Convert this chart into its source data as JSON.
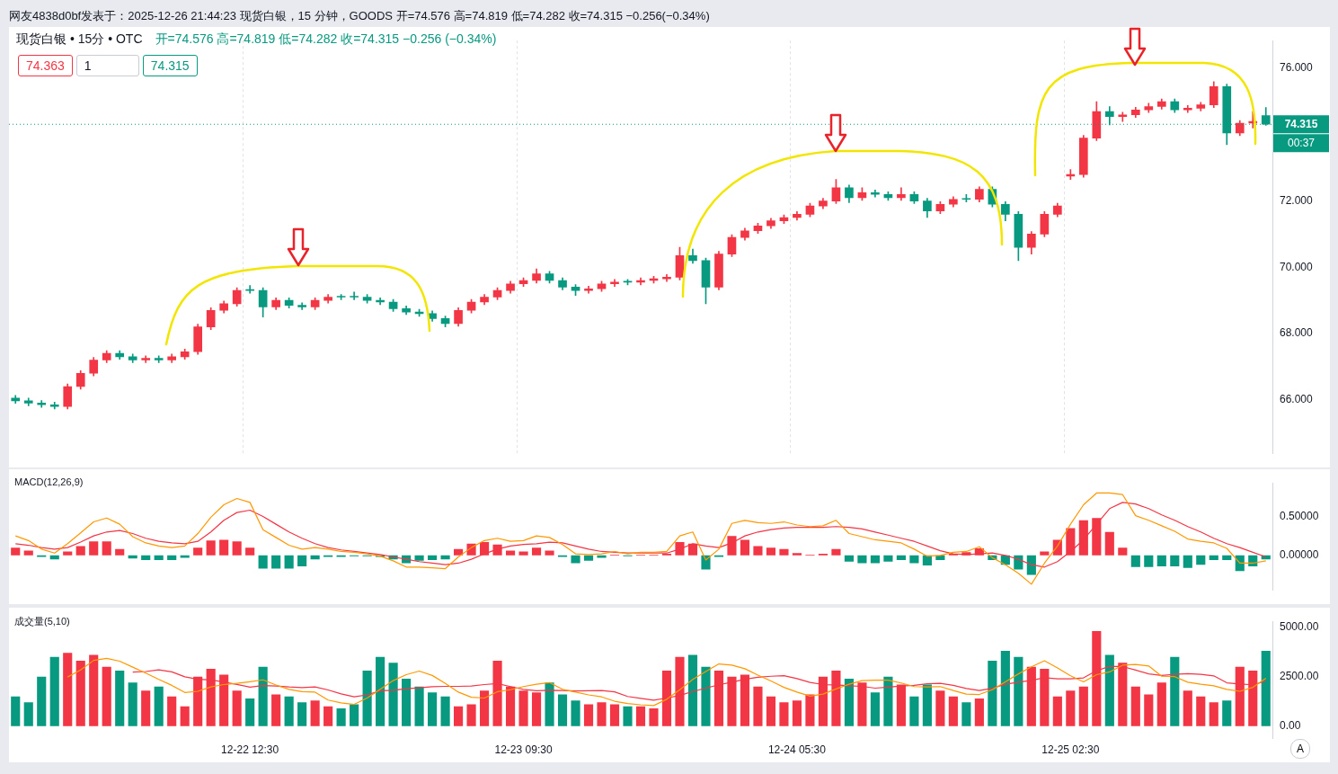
{
  "chart_data": [
    {
      "type": "candlestick",
      "title": "网友4838d0bf发表于：2025-12-26 21:44:23 现货白银，15 分钟，GOODS 开=74.576 高=74.819 低=74.282 收=74.315 −0.256(−0.34%)",
      "categories": [
        null,
        null,
        null,
        null,
        null,
        null,
        null,
        null,
        null,
        null,
        null,
        null,
        null,
        null,
        null,
        null,
        null,
        null,
        null,
        null,
        null,
        null,
        null,
        null,
        null,
        null,
        null,
        null,
        null,
        null,
        null,
        null,
        null,
        null,
        null,
        null,
        null,
        null,
        null,
        null,
        null,
        null,
        null,
        null,
        null,
        null,
        null,
        null,
        null,
        null,
        null,
        null,
        null,
        null,
        null,
        null,
        null,
        null,
        null,
        null,
        null,
        null,
        null,
        null,
        null,
        null,
        null,
        null,
        null,
        null,
        null,
        null,
        null,
        null,
        null,
        null,
        null,
        null,
        null,
        null,
        null,
        null,
        null,
        null,
        null,
        null,
        null,
        null,
        null,
        null,
        null,
        null,
        null,
        null,
        null,
        null,
        null
      ],
      "ohlc": [
        [
          66.05,
          66.13,
          65.89,
          65.97
        ],
        [
          65.97,
          66.05,
          65.82,
          65.9
        ],
        [
          65.9,
          65.98,
          65.77,
          65.85
        ],
        [
          65.85,
          65.93,
          65.72,
          65.8
        ],
        [
          65.8,
          66.48,
          65.72,
          66.4
        ],
        [
          66.4,
          66.88,
          66.32,
          66.8
        ],
        [
          66.8,
          67.28,
          66.72,
          67.2
        ],
        [
          67.2,
          67.48,
          67.12,
          67.4
        ],
        [
          67.4,
          67.48,
          67.22,
          67.3
        ],
        [
          67.3,
          67.38,
          67.12,
          67.2
        ],
        [
          67.2,
          67.33,
          67.12,
          67.25
        ],
        [
          67.25,
          67.33,
          67.12,
          67.2
        ],
        [
          67.2,
          67.38,
          67.12,
          67.3
        ],
        [
          67.3,
          67.53,
          67.22,
          67.45
        ],
        [
          67.45,
          68.28,
          67.37,
          68.2
        ],
        [
          68.2,
          68.78,
          68.12,
          68.7
        ],
        [
          68.7,
          68.98,
          68.62,
          68.9
        ],
        [
          68.9,
          69.38,
          68.82,
          69.3
        ],
        [
          69.3,
          69.45,
          69.22,
          69.3
        ],
        [
          69.3,
          69.38,
          68.5,
          68.8
        ],
        [
          68.8,
          69.08,
          68.72,
          69.0
        ],
        [
          69.0,
          69.08,
          68.77,
          68.85
        ],
        [
          68.85,
          68.93,
          68.72,
          68.8
        ],
        [
          68.8,
          69.08,
          68.72,
          69.0
        ],
        [
          69.0,
          69.18,
          68.92,
          69.1
        ],
        [
          69.1,
          69.18,
          69.02,
          69.1
        ],
        [
          69.1,
          69.25,
          69.02,
          69.1
        ],
        [
          69.1,
          69.18,
          68.92,
          69.0
        ],
        [
          69.0,
          69.08,
          68.87,
          68.95
        ],
        [
          68.95,
          69.03,
          68.67,
          68.75
        ],
        [
          68.75,
          68.83,
          68.57,
          68.65
        ],
        [
          68.65,
          68.73,
          68.52,
          68.6
        ],
        [
          68.6,
          68.68,
          68.37,
          68.45
        ],
        [
          68.45,
          68.53,
          68.2,
          68.3
        ],
        [
          68.3,
          68.78,
          68.22,
          68.7
        ],
        [
          68.7,
          69.03,
          68.62,
          68.95
        ],
        [
          68.95,
          69.18,
          68.87,
          69.1
        ],
        [
          69.1,
          69.38,
          69.02,
          69.3
        ],
        [
          69.3,
          69.58,
          69.22,
          69.5
        ],
        [
          69.5,
          69.68,
          69.42,
          69.6
        ],
        [
          69.6,
          69.95,
          69.52,
          69.8
        ],
        [
          69.8,
          69.88,
          69.52,
          69.6
        ],
        [
          69.6,
          69.68,
          69.32,
          69.4
        ],
        [
          69.4,
          69.48,
          69.15,
          69.3
        ],
        [
          69.3,
          69.43,
          69.22,
          69.35
        ],
        [
          69.35,
          69.58,
          69.27,
          69.5
        ],
        [
          69.5,
          69.63,
          69.42,
          69.55
        ],
        [
          69.55,
          69.63,
          69.47,
          69.55
        ],
        [
          69.55,
          69.68,
          69.47,
          69.6
        ],
        [
          69.6,
          69.73,
          69.52,
          69.65
        ],
        [
          69.65,
          69.78,
          69.57,
          69.7
        ],
        [
          69.7,
          70.6,
          69.62,
          70.35
        ],
        [
          70.35,
          70.55,
          70.12,
          70.2
        ],
        [
          70.2,
          70.28,
          68.9,
          69.4
        ],
        [
          69.4,
          70.48,
          69.32,
          70.4
        ],
        [
          70.4,
          70.98,
          70.32,
          70.9
        ],
        [
          70.9,
          71.18,
          70.82,
          71.1
        ],
        [
          71.1,
          71.33,
          71.02,
          71.25
        ],
        [
          71.25,
          71.48,
          71.17,
          71.4
        ],
        [
          71.4,
          71.58,
          71.32,
          71.5
        ],
        [
          71.5,
          71.68,
          71.42,
          71.6
        ],
        [
          71.6,
          71.93,
          71.52,
          71.85
        ],
        [
          71.85,
          72.08,
          71.77,
          72.0
        ],
        [
          72.0,
          72.65,
          71.92,
          72.4
        ],
        [
          72.4,
          72.48,
          71.95,
          72.1
        ],
        [
          72.1,
          72.4,
          72.02,
          72.25
        ],
        [
          72.25,
          72.33,
          72.12,
          72.2
        ],
        [
          72.2,
          72.28,
          72.02,
          72.1
        ],
        [
          72.1,
          72.4,
          72.02,
          72.2
        ],
        [
          72.2,
          72.28,
          71.92,
          72.0
        ],
        [
          72.0,
          72.08,
          71.5,
          71.7
        ],
        [
          71.7,
          71.98,
          71.62,
          71.9
        ],
        [
          71.9,
          72.13,
          71.82,
          72.05
        ],
        [
          72.05,
          72.2,
          71.97,
          72.05
        ],
        [
          72.05,
          72.43,
          71.97,
          72.35
        ],
        [
          72.35,
          72.43,
          71.82,
          71.9
        ],
        [
          71.9,
          71.98,
          71.4,
          71.6
        ],
        [
          71.6,
          71.68,
          70.2,
          70.6
        ],
        [
          70.6,
          71.08,
          70.4,
          71.0
        ],
        [
          71.0,
          71.68,
          70.92,
          71.6
        ],
        [
          71.6,
          71.93,
          71.52,
          71.85
        ],
        [
          72.75,
          72.95,
          72.65,
          72.8
        ],
        [
          72.8,
          73.98,
          72.72,
          73.9
        ],
        [
          73.9,
          75.0,
          73.82,
          74.7
        ],
        [
          74.7,
          74.85,
          74.3,
          74.55
        ],
        [
          74.55,
          74.68,
          74.4,
          74.6
        ],
        [
          74.6,
          74.83,
          74.52,
          74.75
        ],
        [
          74.75,
          74.95,
          74.67,
          74.85
        ],
        [
          74.85,
          75.08,
          74.77,
          75.0
        ],
        [
          75.0,
          75.08,
          74.67,
          74.75
        ],
        [
          74.75,
          74.88,
          74.67,
          74.8
        ],
        [
          74.8,
          74.98,
          74.72,
          74.9
        ],
        [
          74.9,
          75.6,
          74.82,
          75.45
        ],
        [
          75.45,
          75.53,
          73.7,
          74.05
        ],
        [
          74.05,
          74.43,
          73.97,
          74.35
        ],
        [
          74.35,
          74.7,
          74.2,
          74.4
        ],
        [
          74.576,
          74.819,
          74.282,
          74.315
        ]
      ],
      "colors": [
        "#089981",
        "#089981",
        "#089981",
        "#089981",
        "#f23645",
        "#f23645",
        "#f23645",
        "#f23645",
        "#089981",
        "#089981",
        "#f23645",
        "#089981",
        "#f23645",
        "#f23645",
        "#f23645",
        "#f23645",
        "#f23645",
        "#f23645",
        "#089981",
        "#089981",
        "#f23645",
        "#089981",
        "#089981",
        "#f23645",
        "#f23645",
        "#089981",
        "#089981",
        "#089981",
        "#089981",
        "#089981",
        "#089981",
        "#089981",
        "#089981",
        "#089981",
        "#f23645",
        "#f23645",
        "#f23645",
        "#f23645",
        "#f23645",
        "#f23645",
        "#f23645",
        "#089981",
        "#089981",
        "#089981",
        "#f23645",
        "#f23645",
        "#f23645",
        "#089981",
        "#f23645",
        "#f23645",
        "#f23645",
        "#f23645",
        "#089981",
        "#089981",
        "#f23645",
        "#f23645",
        "#f23645",
        "#f23645",
        "#f23645",
        "#f23645",
        "#f23645",
        "#f23645",
        "#f23645",
        "#f23645",
        "#089981",
        "#f23645",
        "#089981",
        "#089981",
        "#f23645",
        "#089981",
        "#089981",
        "#f23645",
        "#f23645",
        "#089981",
        "#f23645",
        "#089981",
        "#089981",
        "#089981",
        "#f23645",
        "#f23645",
        "#f23645",
        "#f23645",
        "#f23645",
        "#f23645",
        "#089981",
        "#f23645",
        "#f23645",
        "#f23645",
        "#f23645",
        "#089981",
        "#f23645",
        "#f23645",
        "#f23645",
        "#089981",
        "#f23645",
        "#f23645",
        "#089981"
      ],
      "ylim": [
        64.37,
        76.84
      ],
      "yticks": [
        {
          "value": 66,
          "label": "66.000"
        },
        {
          "value": 68,
          "label": "68.000"
        },
        {
          "value": 70,
          "label": "70.000"
        },
        {
          "value": 72,
          "label": "72.000"
        },
        {
          "value": 76,
          "label": "76.000"
        }
      ],
      "grid": "x",
      "tick_labels": "y",
      "ref_lines": [
        {
          "axis": "y",
          "value": 74.315,
          "label": "74.315",
          "color": "#089981",
          "line_style": "dotted"
        }
      ],
      "annotations": [
        "现货白银 • 15分 • OTC",
        "开=74.576 高=74.819 低=74.282 收=74.315 −0.256 (−0.34%)",
        "74.363",
        "1",
        "74.315",
        "00:37"
      ]
    },
    {
      "type": "bar",
      "title": "MACD(12,26,9)",
      "categories": [
        null,
        null,
        null,
        null,
        null,
        null,
        null,
        null,
        null,
        null,
        null,
        null,
        null,
        null,
        null,
        null,
        null,
        null,
        null,
        null,
        null,
        null,
        null,
        null,
        null,
        null,
        null,
        null,
        null,
        null,
        null,
        null,
        null,
        null,
        null,
        null,
        null,
        null,
        null,
        null,
        null,
        null,
        null,
        null,
        null,
        null,
        null,
        null,
        null,
        null,
        null,
        null,
        null,
        null,
        null,
        null,
        null,
        null,
        null,
        null,
        null,
        null,
        null,
        null,
        null,
        null,
        null,
        null,
        null,
        null,
        null,
        null,
        null,
        null,
        null,
        null,
        null,
        null,
        null,
        null,
        null,
        null,
        null,
        null,
        null,
        null,
        null,
        null,
        null,
        null,
        null,
        null,
        null,
        null,
        null,
        null,
        null
      ],
      "series": [
        {
          "type": "bar",
          "values": [
            0.1,
            0.06,
            -0.02,
            -0.05,
            0.05,
            0.12,
            0.18,
            0.18,
            0.08,
            -0.04,
            -0.06,
            -0.06,
            -0.06,
            -0.03,
            0.1,
            0.19,
            0.2,
            0.18,
            0.1,
            -0.17,
            -0.17,
            -0.17,
            -0.14,
            -0.05,
            -0.02,
            -0.02,
            -0.01,
            -0.01,
            -0.02,
            -0.05,
            -0.1,
            -0.07,
            -0.06,
            -0.05,
            0.08,
            0.15,
            0.17,
            0.14,
            0.06,
            0.05,
            0.1,
            0.06,
            -0.02,
            -0.1,
            -0.07,
            -0.03,
            0.01,
            -0.01,
            0.01,
            0.01,
            0.02,
            0.17,
            0.15,
            -0.18,
            -0.02,
            0.25,
            0.2,
            0.12,
            0.1,
            0.08,
            0.03,
            0.01,
            0.02,
            0.08,
            -0.08,
            -0.1,
            -0.1,
            -0.08,
            -0.06,
            -0.1,
            -0.13,
            -0.06,
            0.02,
            0.04,
            0.09,
            -0.06,
            -0.12,
            -0.18,
            -0.25,
            0.05,
            0.2,
            0.35,
            0.45,
            0.48,
            0.3,
            0.1,
            -0.15,
            -0.15,
            -0.14,
            -0.14,
            -0.16,
            -0.12,
            -0.06,
            -0.06,
            -0.2,
            -0.14,
            -0.05
          ],
          "colors": [
            "#f23645",
            "#f23645",
            "#089981",
            "#089981",
            "#f23645",
            "#f23645",
            "#f23645",
            "#f23645",
            "#f23645",
            "#089981",
            "#089981",
            "#089981",
            "#089981",
            "#089981",
            "#f23645",
            "#f23645",
            "#f23645",
            "#f23645",
            "#f23645",
            "#089981",
            "#089981",
            "#089981",
            "#089981",
            "#089981",
            "#089981",
            "#089981",
            "#089981",
            "#089981",
            "#089981",
            "#089981",
            "#089981",
            "#089981",
            "#089981",
            "#089981",
            "#f23645",
            "#f23645",
            "#f23645",
            "#f23645",
            "#f23645",
            "#f23645",
            "#f23645",
            "#f23645",
            "#089981",
            "#089981",
            "#089981",
            "#089981",
            "#f23645",
            "#089981",
            "#f23645",
            "#f23645",
            "#f23645",
            "#f23645",
            "#f23645",
            "#089981",
            "#089981",
            "#f23645",
            "#f23645",
            "#f23645",
            "#f23645",
            "#f23645",
            "#f23645",
            "#f23645",
            "#f23645",
            "#f23645",
            "#089981",
            "#089981",
            "#089981",
            "#089981",
            "#089981",
            "#089981",
            "#089981",
            "#089981",
            "#f23645",
            "#f23645",
            "#f23645",
            "#089981",
            "#089981",
            "#089981",
            "#089981",
            "#f23645",
            "#f23645",
            "#f23645",
            "#f23645",
            "#f23645",
            "#f23645",
            "#f23645",
            "#089981",
            "#089981",
            "#089981",
            "#089981",
            "#089981",
            "#089981",
            "#089981",
            "#089981",
            "#089981",
            "#089981",
            "#089981"
          ]
        },
        {
          "type": "line",
          "color": "#ff9800",
          "values": [
            0.25,
            0.19,
            0.08,
            0.03,
            0.15,
            0.29,
            0.43,
            0.48,
            0.4,
            0.24,
            0.16,
            0.12,
            0.1,
            0.12,
            0.28,
            0.49,
            0.65,
            0.73,
            0.68,
            0.33,
            0.23,
            0.13,
            0.08,
            0.1,
            0.08,
            0.05,
            0.04,
            0.02,
            -0.01,
            -0.07,
            -0.15,
            -0.15,
            -0.16,
            -0.17,
            -0.02,
            0.1,
            0.19,
            0.22,
            0.18,
            0.19,
            0.25,
            0.23,
            0.14,
            0.02,
            0.01,
            0.02,
            0.05,
            0.02,
            0.04,
            0.04,
            0.05,
            0.25,
            0.3,
            -0.06,
            0.08,
            0.41,
            0.45,
            0.42,
            0.41,
            0.43,
            0.39,
            0.37,
            0.38,
            0.45,
            0.28,
            0.24,
            0.2,
            0.18,
            0.16,
            0.08,
            -0.01,
            0,
            0.04,
            0.05,
            0.11,
            -0.03,
            -0.12,
            -0.23,
            -0.37,
            -0.1,
            0.12,
            0.4,
            0.65,
            0.8,
            0.8,
            0.78,
            0.51,
            0.45,
            0.38,
            0.31,
            0.21,
            0.18,
            0.16,
            0.09,
            -0.1,
            -0.1,
            -0.07
          ]
        },
        {
          "type": "line",
          "color": "#f23645",
          "values": [
            0.15,
            0.13,
            0.1,
            0.08,
            0.1,
            0.17,
            0.25,
            0.3,
            0.32,
            0.28,
            0.22,
            0.18,
            0.16,
            0.15,
            0.18,
            0.3,
            0.45,
            0.55,
            0.58,
            0.5,
            0.4,
            0.3,
            0.22,
            0.15,
            0.1,
            0.07,
            0.05,
            0.03,
            0.01,
            -0.02,
            -0.05,
            -0.08,
            -0.1,
            -0.12,
            -0.1,
            -0.05,
            0.02,
            0.08,
            0.12,
            0.14,
            0.15,
            0.17,
            0.16,
            0.12,
            0.08,
            0.05,
            0.04,
            0.03,
            0.03,
            0.03,
            0.03,
            0.08,
            0.15,
            0.12,
            0.1,
            0.16,
            0.25,
            0.3,
            0.33,
            0.35,
            0.36,
            0.36,
            0.36,
            0.37,
            0.36,
            0.34,
            0.3,
            0.26,
            0.22,
            0.18,
            0.12,
            0.06,
            0.02,
            0.01,
            0.02,
            0.03,
            0,
            -0.05,
            -0.12,
            -0.15,
            -0.08,
            0.05,
            0.2,
            0.4,
            0.6,
            0.68,
            0.66,
            0.6,
            0.52,
            0.45,
            0.37,
            0.3,
            0.22,
            0.15,
            0.1,
            0.04,
            -0.02
          ]
        }
      ],
      "ylim": [
        -0.45,
        0.93
      ],
      "yticks": [
        {
          "value": 0.5,
          "label": "0.50000"
        },
        {
          "value": 0,
          "label": "0.00000"
        }
      ],
      "tick_labels": "y",
      "marker": "none"
    },
    {
      "type": "bar",
      "title": "成交量(5,10)",
      "categories": [
        null,
        null,
        null,
        null,
        null,
        null,
        null,
        null,
        null,
        null,
        null,
        null,
        null,
        null,
        null,
        null,
        null,
        null,
        "12-22 12:30",
        null,
        null,
        null,
        null,
        null,
        null,
        null,
        null,
        null,
        null,
        null,
        null,
        null,
        null,
        null,
        null,
        null,
        null,
        null,
        null,
        "12-23 09:30",
        null,
        null,
        null,
        null,
        null,
        null,
        null,
        null,
        null,
        null,
        null,
        null,
        null,
        null,
        null,
        null,
        null,
        null,
        null,
        null,
        "12-24 05:30",
        null,
        null,
        null,
        null,
        null,
        null,
        null,
        null,
        null,
        null,
        null,
        null,
        null,
        null,
        null,
        null,
        null,
        null,
        null,
        null,
        "12-25 02:30",
        null,
        null,
        null,
        null,
        null,
        null,
        null,
        null,
        null,
        null,
        null,
        null,
        null,
        null,
        null
      ],
      "series": [
        {
          "type": "bar",
          "values": [
            1500,
            1200,
            2500,
            3500,
            3700,
            3300,
            3600,
            3000,
            2800,
            2200,
            1800,
            2000,
            1500,
            1000,
            2500,
            2900,
            2600,
            1800,
            1400,
            3000,
            1600,
            1500,
            1200,
            1300,
            1000,
            900,
            1100,
            2800,
            3500,
            3200,
            2400,
            2000,
            1700,
            1500,
            1000,
            1100,
            1800,
            3300,
            2000,
            1800,
            1700,
            2200,
            1600,
            1300,
            1100,
            1200,
            1100,
            1000,
            1000,
            900,
            2800,
            3500,
            3600,
            3000,
            2800,
            2500,
            2600,
            2000,
            1500,
            1200,
            1300,
            1600,
            2500,
            2800,
            2400,
            2200,
            1700,
            2500,
            2100,
            1500,
            2100,
            1800,
            1500,
            1200,
            1400,
            3300,
            3800,
            3500,
            3000,
            2900,
            1500,
            1800,
            2000,
            4800,
            3600,
            3200,
            2000,
            1600,
            2200,
            3500,
            1800,
            1500,
            1200,
            1300,
            3000,
            2800,
            3800
          ],
          "colors": [
            "#089981",
            "#089981",
            "#089981",
            "#089981",
            "#f23645",
            "#f23645",
            "#f23645",
            "#f23645",
            "#089981",
            "#089981",
            "#f23645",
            "#089981",
            "#f23645",
            "#f23645",
            "#f23645",
            "#f23645",
            "#f23645",
            "#f23645",
            "#089981",
            "#089981",
            "#f23645",
            "#089981",
            "#089981",
            "#f23645",
            "#f23645",
            "#089981",
            "#089981",
            "#089981",
            "#089981",
            "#089981",
            "#089981",
            "#089981",
            "#089981",
            "#089981",
            "#f23645",
            "#f23645",
            "#f23645",
            "#f23645",
            "#f23645",
            "#f23645",
            "#f23645",
            "#089981",
            "#089981",
            "#089981",
            "#f23645",
            "#f23645",
            "#f23645",
            "#089981",
            "#f23645",
            "#f23645",
            "#f23645",
            "#f23645",
            "#089981",
            "#089981",
            "#f23645",
            "#f23645",
            "#f23645",
            "#f23645",
            "#f23645",
            "#f23645",
            "#f23645",
            "#f23645",
            "#f23645",
            "#f23645",
            "#089981",
            "#f23645",
            "#089981",
            "#089981",
            "#f23645",
            "#089981",
            "#089981",
            "#f23645",
            "#f23645",
            "#089981",
            "#f23645",
            "#089981",
            "#089981",
            "#089981",
            "#f23645",
            "#f23645",
            "#f23645",
            "#f23645",
            "#f23645",
            "#f23645",
            "#089981",
            "#f23645",
            "#f23645",
            "#f23645",
            "#f23645",
            "#089981",
            "#f23645",
            "#f23645",
            "#f23645",
            "#089981",
            "#f23645",
            "#f23645",
            "#089981"
          ]
        },
        {
          "type": "line",
          "color": "#ff9800",
          "values": [
            null,
            null,
            null,
            null,
            2480,
            2840,
            3320,
            3420,
            3280,
            2980,
            2680,
            2360,
            2060,
            1700,
            1760,
            1980,
            2100,
            2160,
            2240,
            2340,
            2080,
            1860,
            1740,
            1720,
            1320,
            1180,
            1100,
            1420,
            1860,
            2300,
            2600,
            2780,
            2560,
            2160,
            1720,
            1460,
            1420,
            1740,
            1840,
            2000,
            2120,
            2200,
            1860,
            1720,
            1580,
            1480,
            1260,
            1140,
            1080,
            1040,
            1360,
            1840,
            2360,
            2760,
            3140,
            3080,
            2900,
            2580,
            2280,
            1960,
            1720,
            1520,
            1620,
            1880,
            2120,
            2300,
            2320,
            2320,
            2180,
            2000,
            1980,
            2000,
            1800,
            1620,
            1600,
            1840,
            2240,
            2640,
            3000,
            3300,
            2940,
            2540,
            2240,
            2600,
            2740,
            3080,
            3120,
            3040,
            2520,
            2500,
            2220,
            2120,
            2040,
            1860,
            1760,
            1960,
            2420
          ]
        },
        {
          "type": "line",
          "color": "#f23645",
          "values": [
            null,
            null,
            null,
            null,
            null,
            null,
            null,
            null,
            null,
            2730,
            2760,
            2840,
            2740,
            2490,
            2370,
            2330,
            2230,
            2110,
            1970,
            2050,
            2030,
            1980,
            1950,
            1980,
            1830,
            1630,
            1480,
            1580,
            1790,
            1810,
            1890,
            1940,
            1990,
            2010,
            2010,
            2030,
            2100,
            2150,
            2000,
            1860,
            1790,
            1810,
            1800,
            1780,
            1790,
            1800,
            1730,
            1500,
            1400,
            1310,
            1420,
            1550,
            1750,
            1920,
            2090,
            2220,
            2370,
            2470,
            2520,
            2550,
            2400,
            2210,
            2100,
            2080,
            2040,
            2010,
            1920,
            1970,
            2030,
            2060,
            2140,
            2160,
            2060,
            1900,
            1800,
            1910,
            2120,
            2220,
            2310,
            2450,
            2390,
            2390,
            2440,
            2800,
            3020,
            3010,
            2830,
            2640,
            2560,
            2620,
            2650,
            2620,
            2540,
            2190,
            2130,
            2090,
            2270
          ]
        }
      ],
      "ylim": [
        -625,
        5290
      ],
      "yticks": [
        {
          "value": 0,
          "label": "0.00"
        },
        {
          "value": 2500,
          "label": "2500.00"
        },
        {
          "value": 5000,
          "label": "5000.00"
        }
      ],
      "marker": "none",
      "annotations": [
        "A"
      ]
    }
  ]
}
